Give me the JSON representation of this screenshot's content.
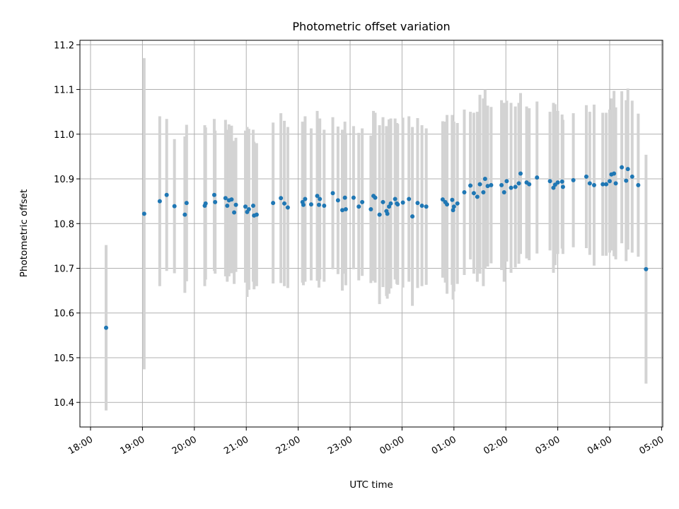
{
  "chart_data": {
    "type": "scatter",
    "title": "Photometric offset variation",
    "xlabel": "UTC time",
    "ylabel": "Photometric offset",
    "grid": true,
    "ylim": [
      10.345,
      11.21
    ],
    "xlim": [
      "18:00",
      "05:00"
    ],
    "x_ticks": [
      "18:00",
      "19:00",
      "20:00",
      "21:00",
      "22:00",
      "23:00",
      "00:00",
      "01:00",
      "02:00",
      "03:00",
      "04:00",
      "05:00"
    ],
    "y_ticks": [
      "10.4",
      "10.5",
      "10.6",
      "10.7",
      "10.8",
      "10.9",
      "11.0",
      "11.1",
      "11.2"
    ],
    "marker_color": "#1f77b4",
    "errorbar_color": "#d3d3d3",
    "series": [
      {
        "x": [
          "18:18",
          "19:02",
          "19:20",
          "19:28",
          "19:37",
          "19:49",
          "19:51",
          "20:12",
          "20:13",
          "20:23",
          "20:24",
          "20:36",
          "20:38",
          "20:40",
          "20:43",
          "20:46",
          "20:48",
          "20:59",
          "21:01",
          "21:03",
          "21:08",
          "21:09",
          "21:12",
          "21:31",
          "21:40",
          "21:44",
          "21:48",
          "22:05",
          "22:06",
          "22:08",
          "22:15",
          "22:22",
          "22:24",
          "22:25",
          "22:30",
          "22:40",
          "22:46",
          "22:51",
          "22:54",
          "22:55",
          "23:04",
          "23:10",
          "23:14",
          "23:24",
          "23:27",
          "23:29",
          "23:34",
          "23:38",
          "23:42",
          "23:43",
          "23:45",
          "23:47",
          "23:52",
          "23:54",
          "23:55",
          "00:01",
          "00:08",
          "00:12",
          "00:18",
          "00:23",
          "00:28",
          "00:47",
          "00:50",
          "00:52",
          "00:58",
          "00:59",
          "01:00",
          "01:04",
          "01:12",
          "01:19",
          "01:23",
          "01:27",
          "01:30",
          "01:34",
          "01:36",
          "01:39",
          "01:43",
          "01:55",
          "01:58",
          "02:01",
          "02:06",
          "02:11",
          "02:15",
          "02:17",
          "02:24",
          "02:27",
          "02:36",
          "02:51",
          "02:55",
          "02:57",
          "03:00",
          "03:05",
          "03:06",
          "03:18",
          "03:33",
          "03:37",
          "03:42",
          "03:52",
          "03:56",
          "04:00",
          "04:02",
          "04:05",
          "04:07",
          "04:14",
          "04:19",
          "04:21",
          "04:26",
          "04:33",
          "04:42"
        ],
        "y": [
          10.567,
          10.822,
          10.85,
          10.864,
          10.839,
          10.82,
          10.846,
          10.84,
          10.845,
          10.864,
          10.848,
          10.857,
          10.84,
          10.852,
          10.854,
          10.825,
          10.842,
          10.838,
          10.826,
          10.832,
          10.84,
          10.818,
          10.82,
          10.846,
          10.857,
          10.845,
          10.836,
          10.848,
          10.842,
          10.855,
          10.843,
          10.862,
          10.842,
          10.855,
          10.84,
          10.868,
          10.852,
          10.83,
          10.858,
          10.832,
          10.858,
          10.838,
          10.848,
          10.832,
          10.862,
          10.858,
          10.82,
          10.848,
          10.828,
          10.822,
          10.838,
          10.845,
          10.855,
          10.845,
          10.843,
          10.847,
          10.855,
          10.816,
          10.846,
          10.84,
          10.838,
          10.854,
          10.848,
          10.843,
          10.853,
          10.83,
          10.838,
          10.845,
          10.87,
          10.885,
          10.868,
          10.86,
          10.888,
          10.87,
          10.9,
          10.884,
          10.886,
          10.886,
          10.87,
          10.895,
          10.88,
          10.882,
          10.89,
          10.912,
          10.892,
          10.888,
          10.903,
          10.895,
          10.88,
          10.887,
          10.892,
          10.894,
          10.882,
          10.897,
          10.905,
          10.89,
          10.886,
          10.888,
          10.888,
          10.895,
          10.91,
          10.912,
          10.89,
          10.926,
          10.896,
          10.922,
          10.905,
          10.886,
          10.698
        ],
        "yerr": [
          0.185,
          0.348,
          0.19,
          0.17,
          0.15,
          0.175,
          0.175,
          0.18,
          0.17,
          0.17,
          0.16,
          0.175,
          0.17,
          0.17,
          0.165,
          0.16,
          0.15,
          0.17,
          0.19,
          0.18,
          0.17,
          0.165,
          0.16,
          0.18,
          0.19,
          0.185,
          0.18,
          0.18,
          0.18,
          0.185,
          0.17,
          0.19,
          0.185,
          0.18,
          0.17,
          0.17,
          0.165,
          0.18,
          0.17,
          0.17,
          0.16,
          0.165,
          0.165,
          0.165,
          0.19,
          0.19,
          0.2,
          0.19,
          0.19,
          0.19,
          0.195,
          0.19,
          0.18,
          0.18,
          0.18,
          0.19,
          0.185,
          0.2,
          0.19,
          0.18,
          0.175,
          0.175,
          0.18,
          0.2,
          0.19,
          0.2,
          0.19,
          0.18,
          0.185,
          0.165,
          0.18,
          0.19,
          0.2,
          0.21,
          0.2,
          0.18,
          0.175,
          0.19,
          0.2,
          0.18,
          0.19,
          0.18,
          0.18,
          0.18,
          0.17,
          0.17,
          0.17,
          0.155,
          0.19,
          0.18,
          0.16,
          0.15,
          0.15,
          0.15,
          0.16,
          0.16,
          0.18,
          0.16,
          0.16,
          0.16,
          0.17,
          0.185,
          0.17,
          0.17,
          0.18,
          0.18,
          0.17,
          0.16,
          0.256
        ]
      }
    ]
  }
}
